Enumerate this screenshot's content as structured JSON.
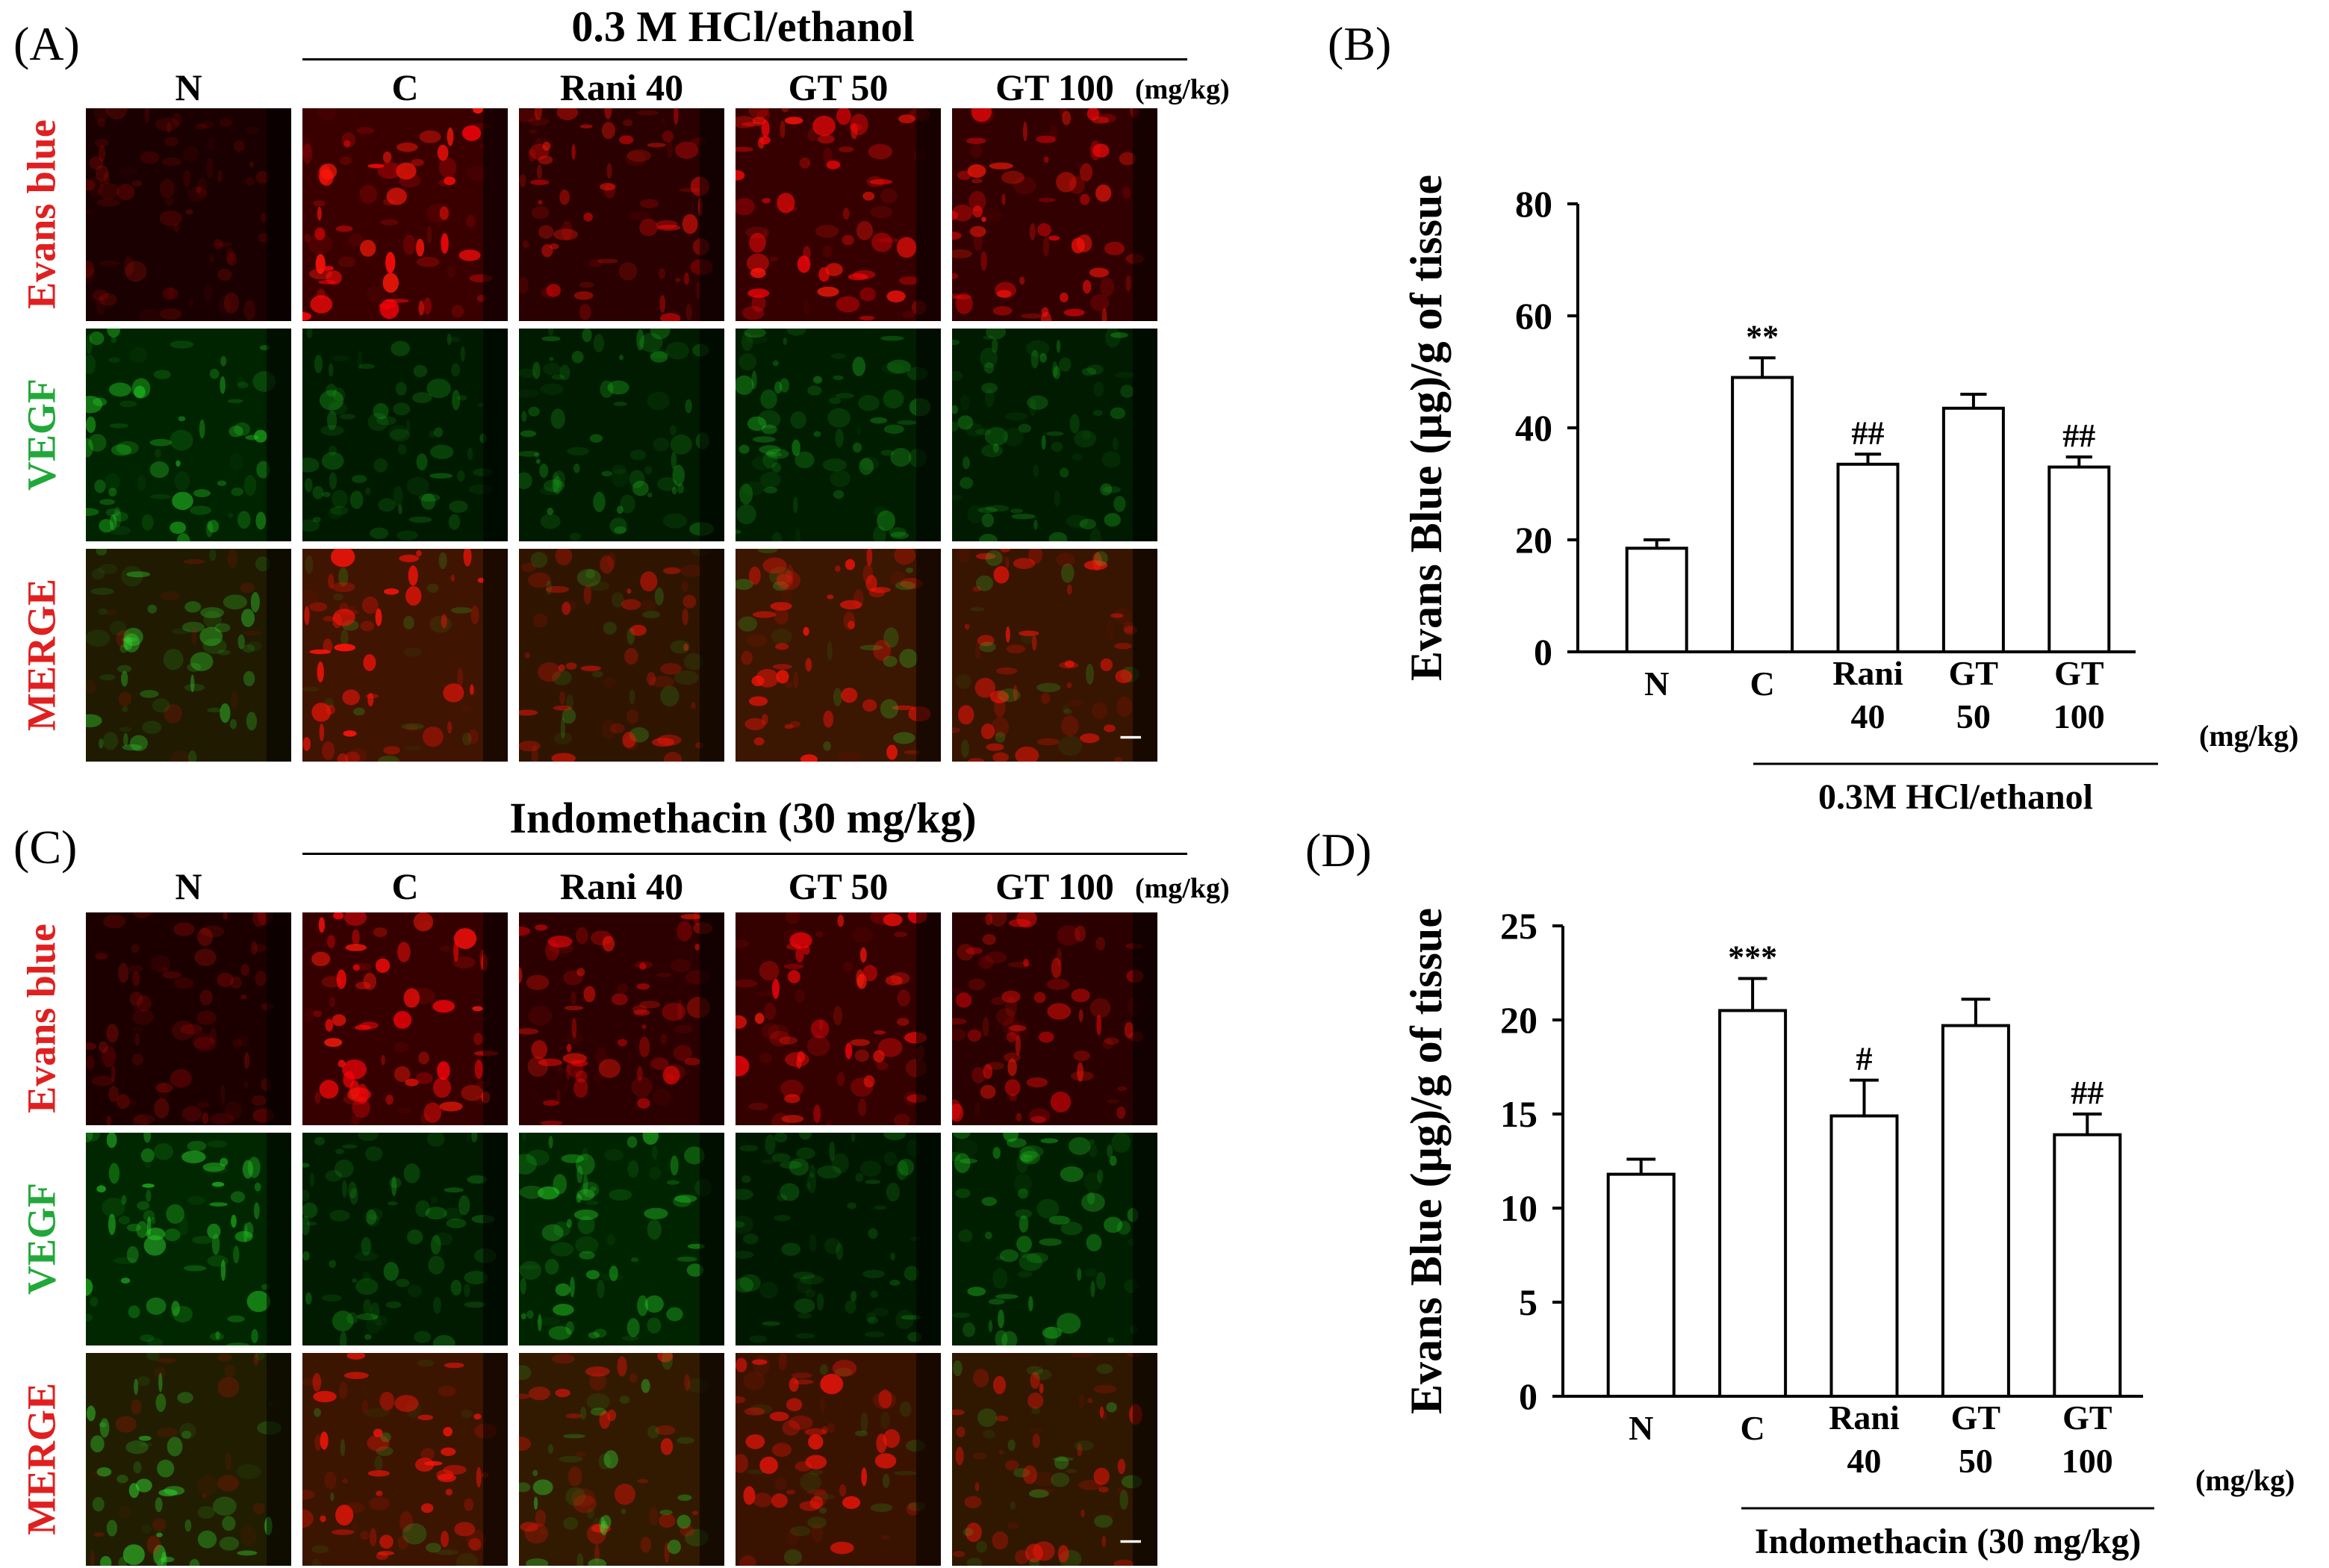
{
  "figure": {
    "panels": {
      "A": {
        "label": "(A)",
        "title": "0.3 M HCl/ethanol"
      },
      "B": {
        "label": "(B)"
      },
      "C": {
        "label": "(C)",
        "title": "Indomethacin (30 mg/kg)"
      },
      "D": {
        "label": "(D)"
      }
    },
    "micro_columns": [
      "N",
      "C",
      "Rani 40",
      "GT 50",
      "GT 100"
    ],
    "micro_unit": "(mg/kg)",
    "micro_rows": [
      {
        "label": "Evans blue",
        "color": "#e02020"
      },
      {
        "label": "VEGF",
        "color": "#22a83a"
      },
      {
        "label": "MERGE",
        "color": "#e02020"
      }
    ]
  },
  "chart_data": [
    {
      "type": "bar",
      "panel": "B",
      "categories": [
        "N",
        "C",
        "Rani 40",
        "GT 50",
        "GT 100"
      ],
      "category_lines": [
        [
          "N"
        ],
        [
          "C"
        ],
        [
          "Rani",
          "40"
        ],
        [
          "GT",
          "50"
        ],
        [
          "GT",
          "100"
        ]
      ],
      "values": [
        18.5,
        49,
        33.5,
        43.5,
        33
      ],
      "errors": [
        1.5,
        3.5,
        1.8,
        2.5,
        1.8
      ],
      "annotations": [
        "",
        "**",
        "##",
        "",
        "##"
      ],
      "ylabel": "Evans Blue (µg)/g of tissue",
      "yticks": [
        0,
        20,
        40,
        60,
        80
      ],
      "ylim": [
        0,
        80
      ],
      "unit": "(mg/kg)",
      "group_label": "0.3M HCl/ethanol",
      "bar_fill": "#ffffff",
      "bar_stroke": "#000000"
    },
    {
      "type": "bar",
      "panel": "D",
      "categories": [
        "N",
        "C",
        "Rani 40",
        "GT 50",
        "GT 100"
      ],
      "category_lines": [
        [
          "N"
        ],
        [
          "C"
        ],
        [
          "Rani",
          "40"
        ],
        [
          "GT",
          "50"
        ],
        [
          "GT",
          "100"
        ]
      ],
      "values": [
        11.8,
        20.5,
        14.9,
        19.7,
        13.9
      ],
      "errors": [
        0.8,
        1.7,
        1.9,
        1.4,
        1.1
      ],
      "annotations": [
        "",
        "***",
        "#",
        "",
        "##"
      ],
      "ylabel": "Evans Blue (µg)/g of tissue",
      "yticks": [
        0,
        5,
        10,
        15,
        20,
        25
      ],
      "ylim": [
        0,
        25
      ],
      "unit": "(mg/kg)",
      "group_label": "Indomethacin (30 mg/kg)",
      "bar_fill": "#ffffff",
      "bar_stroke": "#000000"
    }
  ]
}
